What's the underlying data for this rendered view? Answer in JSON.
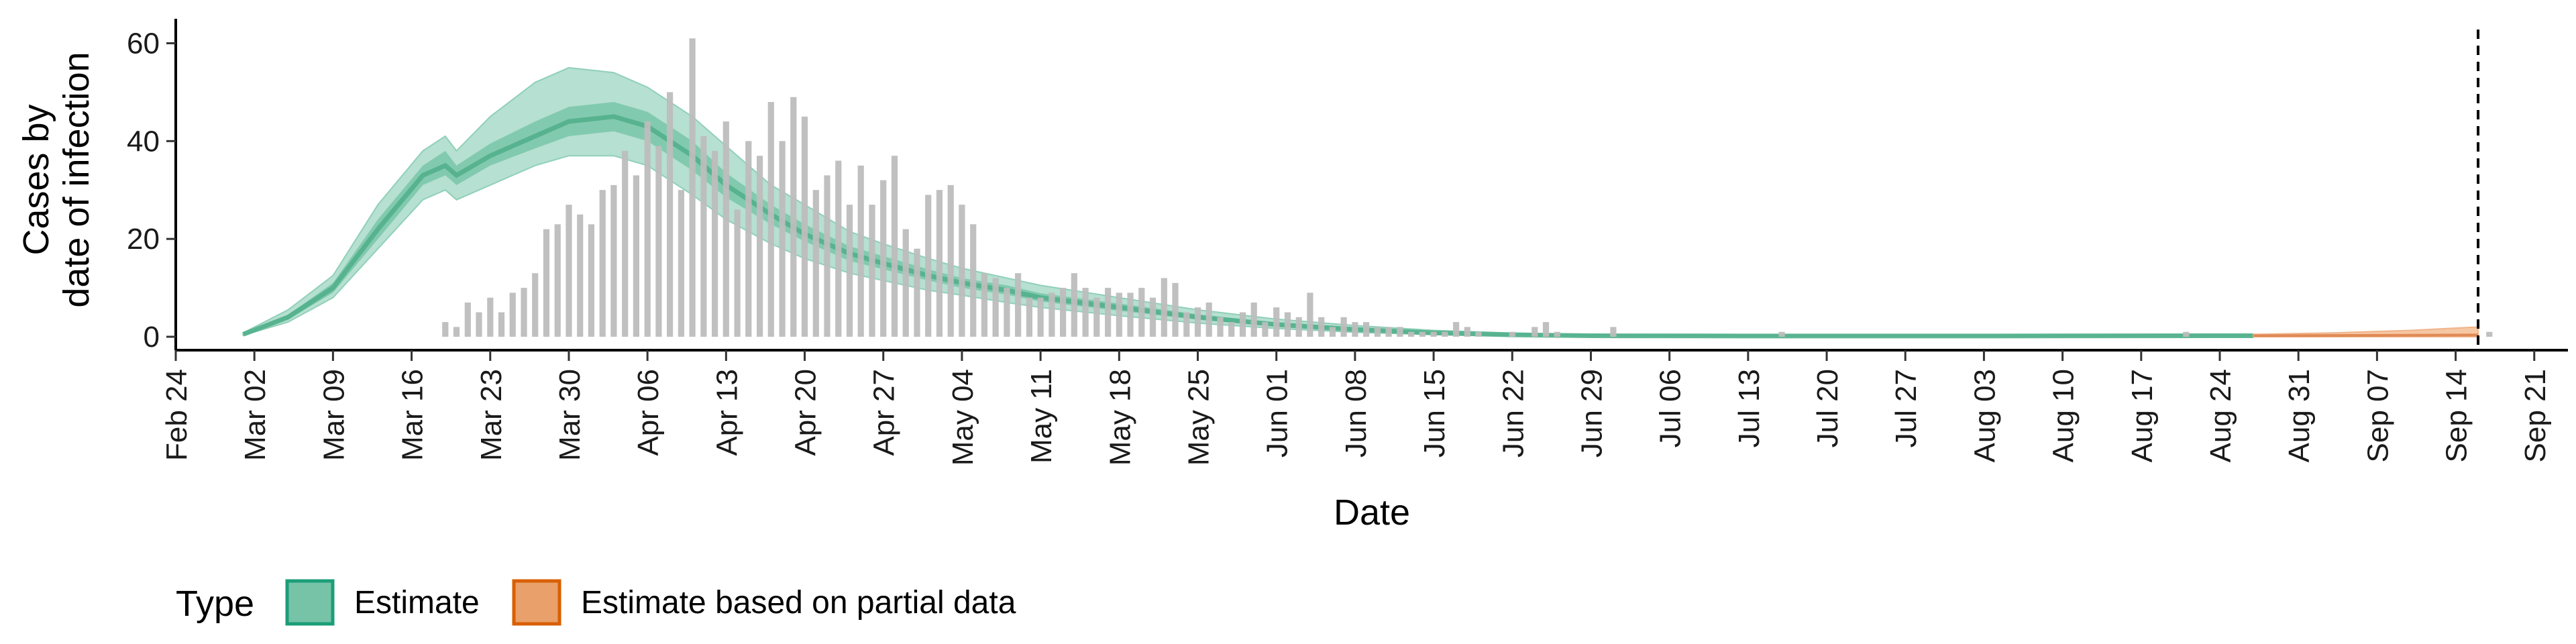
{
  "chart_data": {
    "type": "bar",
    "ylabel_line1": "Cases by",
    "ylabel_line2": "date of infection",
    "xlabel": "Date",
    "ylim": [
      0,
      65
    ],
    "yticks": [
      0,
      20,
      40,
      60
    ],
    "grid": false,
    "x_ticks": [
      "Feb 24",
      "Mar 02",
      "Mar 09",
      "Mar 16",
      "Mar 23",
      "Mar 30",
      "Apr 06",
      "Apr 13",
      "Apr 20",
      "Apr 27",
      "May 04",
      "May 11",
      "May 18",
      "May 25",
      "Jun 01",
      "Jun 08",
      "Jun 15",
      "Jun 22",
      "Jun 29",
      "Jul 06",
      "Jul 13",
      "Jul 20",
      "Jul 27",
      "Aug 03",
      "Aug 10",
      "Aug 17",
      "Aug 24",
      "Aug 31",
      "Sep 07",
      "Sep 14",
      "Sep 21"
    ],
    "x_start": "2020-02-24",
    "x_end": "2020-09-24",
    "reported_cases": {
      "start_date": "2020-03-19",
      "values": [
        3,
        2,
        7,
        5,
        8,
        5,
        9,
        10,
        13,
        22,
        23,
        27,
        25,
        23,
        30,
        31,
        38,
        33,
        44,
        39,
        50,
        30,
        61,
        41,
        38,
        44,
        26,
        40,
        37,
        48,
        40,
        49,
        45,
        30,
        33,
        36,
        27,
        35,
        27,
        32,
        37,
        22,
        18,
        29,
        30,
        31,
        27,
        23,
        13,
        12,
        10,
        13,
        8,
        8,
        9,
        10,
        13,
        10,
        8,
        10,
        9,
        9,
        10,
        8,
        12,
        11,
        5,
        6,
        7,
        4,
        3,
        5,
        7,
        3,
        6,
        5,
        4,
        9,
        4,
        2,
        4,
        3,
        3,
        2,
        2,
        2,
        1,
        1,
        1,
        1,
        3,
        2,
        1,
        0,
        0,
        1,
        0,
        2,
        3,
        1,
        0,
        0,
        0,
        0,
        2,
        0,
        0,
        0,
        0,
        0,
        0,
        0,
        0,
        0,
        0,
        0,
        0,
        0,
        0,
        1,
        0,
        0,
        0,
        0,
        0,
        0,
        0,
        0,
        0,
        0,
        0,
        0,
        0,
        0,
        0,
        0,
        0,
        0,
        0,
        0,
        0,
        0,
        0,
        0,
        0,
        0,
        0,
        0,
        0,
        0,
        0,
        0,
        0,
        0,
        0,
        1,
        0,
        0,
        0,
        0,
        0,
        0,
        0,
        0,
        0,
        0,
        0,
        0,
        0,
        0,
        0,
        0,
        0,
        0,
        0,
        0,
        0,
        0,
        0,
        0,
        0,
        0,
        1
      ]
    },
    "estimate_median": [
      {
        "date": "2020-03-01",
        "y": 0.5
      },
      {
        "date": "2020-03-05",
        "y": 4
      },
      {
        "date": "2020-03-09",
        "y": 10
      },
      {
        "date": "2020-03-13",
        "y": 22
      },
      {
        "date": "2020-03-17",
        "y": 33
      },
      {
        "date": "2020-03-19",
        "y": 35
      },
      {
        "date": "2020-03-20",
        "y": 33
      },
      {
        "date": "2020-03-23",
        "y": 37
      },
      {
        "date": "2020-03-27",
        "y": 41
      },
      {
        "date": "2020-03-30",
        "y": 44
      },
      {
        "date": "2020-04-03",
        "y": 45
      },
      {
        "date": "2020-04-06",
        "y": 43
      },
      {
        "date": "2020-04-10",
        "y": 37
      },
      {
        "date": "2020-04-13",
        "y": 31
      },
      {
        "date": "2020-04-17",
        "y": 25
      },
      {
        "date": "2020-04-20",
        "y": 21
      },
      {
        "date": "2020-04-24",
        "y": 17
      },
      {
        "date": "2020-04-27",
        "y": 15
      },
      {
        "date": "2020-05-01",
        "y": 12.5
      },
      {
        "date": "2020-05-04",
        "y": 11
      },
      {
        "date": "2020-05-08",
        "y": 9.5
      },
      {
        "date": "2020-05-11",
        "y": 8
      },
      {
        "date": "2020-05-18",
        "y": 6
      },
      {
        "date": "2020-05-25",
        "y": 4
      },
      {
        "date": "2020-06-01",
        "y": 2.5
      },
      {
        "date": "2020-06-08",
        "y": 1.5
      },
      {
        "date": "2020-06-15",
        "y": 0.8
      },
      {
        "date": "2020-06-22",
        "y": 0.4
      },
      {
        "date": "2020-06-29",
        "y": 0.2
      },
      {
        "date": "2020-07-13",
        "y": 0.15
      },
      {
        "date": "2020-08-03",
        "y": 0.15
      },
      {
        "date": "2020-08-27",
        "y": 0.2
      }
    ],
    "estimate_inner_band": [
      {
        "date": "2020-03-01",
        "lo": 0.4,
        "hi": 0.6
      },
      {
        "date": "2020-03-05",
        "lo": 3.5,
        "hi": 4.5
      },
      {
        "date": "2020-03-09",
        "lo": 9,
        "hi": 11
      },
      {
        "date": "2020-03-13",
        "lo": 20,
        "hi": 24
      },
      {
        "date": "2020-03-17",
        "lo": 31,
        "hi": 35
      },
      {
        "date": "2020-03-19",
        "lo": 33,
        "hi": 38
      },
      {
        "date": "2020-03-20",
        "lo": 31,
        "hi": 35
      },
      {
        "date": "2020-03-23",
        "lo": 35,
        "hi": 39.5
      },
      {
        "date": "2020-03-27",
        "lo": 38.5,
        "hi": 44
      },
      {
        "date": "2020-03-30",
        "lo": 41,
        "hi": 47
      },
      {
        "date": "2020-04-03",
        "lo": 42,
        "hi": 48
      },
      {
        "date": "2020-04-06",
        "lo": 40,
        "hi": 46
      },
      {
        "date": "2020-04-10",
        "lo": 34,
        "hi": 40
      },
      {
        "date": "2020-04-13",
        "lo": 28.5,
        "hi": 33.5
      },
      {
        "date": "2020-04-17",
        "lo": 23,
        "hi": 27
      },
      {
        "date": "2020-04-20",
        "lo": 19.5,
        "hi": 23
      },
      {
        "date": "2020-04-24",
        "lo": 15.5,
        "hi": 18.5
      },
      {
        "date": "2020-04-27",
        "lo": 13.8,
        "hi": 16.5
      },
      {
        "date": "2020-05-01",
        "lo": 11.5,
        "hi": 13.8
      },
      {
        "date": "2020-05-04",
        "lo": 10,
        "hi": 12
      },
      {
        "date": "2020-05-08",
        "lo": 8.6,
        "hi": 10.5
      },
      {
        "date": "2020-05-11",
        "lo": 7.2,
        "hi": 8.9
      },
      {
        "date": "2020-05-18",
        "lo": 5.3,
        "hi": 6.8
      },
      {
        "date": "2020-05-25",
        "lo": 3.5,
        "hi": 4.6
      },
      {
        "date": "2020-06-01",
        "lo": 2.1,
        "hi": 2.9
      },
      {
        "date": "2020-06-08",
        "lo": 1.2,
        "hi": 1.8
      },
      {
        "date": "2020-06-15",
        "lo": 0.6,
        "hi": 1
      },
      {
        "date": "2020-06-22",
        "lo": 0.3,
        "hi": 0.55
      },
      {
        "date": "2020-06-29",
        "lo": 0.15,
        "hi": 0.3
      },
      {
        "date": "2020-07-13",
        "lo": 0.1,
        "hi": 0.25
      },
      {
        "date": "2020-08-03",
        "lo": 0.1,
        "hi": 0.25
      },
      {
        "date": "2020-08-27",
        "lo": 0.12,
        "hi": 0.3
      }
    ],
    "estimate_outer_band": [
      {
        "date": "2020-03-01",
        "lo": 0.3,
        "hi": 0.8
      },
      {
        "date": "2020-03-05",
        "lo": 3,
        "hi": 5.5
      },
      {
        "date": "2020-03-09",
        "lo": 8,
        "hi": 12.5
      },
      {
        "date": "2020-03-13",
        "lo": 18,
        "hi": 27
      },
      {
        "date": "2020-03-17",
        "lo": 28,
        "hi": 38
      },
      {
        "date": "2020-03-19",
        "lo": 30,
        "hi": 41
      },
      {
        "date": "2020-03-20",
        "lo": 28,
        "hi": 38
      },
      {
        "date": "2020-03-23",
        "lo": 31,
        "hi": 45
      },
      {
        "date": "2020-03-27",
        "lo": 35,
        "hi": 52
      },
      {
        "date": "2020-03-30",
        "lo": 37,
        "hi": 55
      },
      {
        "date": "2020-04-03",
        "lo": 37,
        "hi": 54
      },
      {
        "date": "2020-04-06",
        "lo": 35,
        "hi": 51
      },
      {
        "date": "2020-04-10",
        "lo": 29,
        "hi": 45
      },
      {
        "date": "2020-04-13",
        "lo": 24,
        "hi": 39
      },
      {
        "date": "2020-04-17",
        "lo": 19,
        "hi": 31
      },
      {
        "date": "2020-04-20",
        "lo": 16,
        "hi": 27
      },
      {
        "date": "2020-04-24",
        "lo": 13,
        "hi": 21.5
      },
      {
        "date": "2020-04-27",
        "lo": 11.5,
        "hi": 19
      },
      {
        "date": "2020-05-01",
        "lo": 9.5,
        "hi": 16
      },
      {
        "date": "2020-05-04",
        "lo": 8.5,
        "hi": 14
      },
      {
        "date": "2020-05-08",
        "lo": 7,
        "hi": 12
      },
      {
        "date": "2020-05-11",
        "lo": 6,
        "hi": 10.5
      },
      {
        "date": "2020-05-18",
        "lo": 4.3,
        "hi": 8
      },
      {
        "date": "2020-05-25",
        "lo": 2.8,
        "hi": 5.5
      },
      {
        "date": "2020-06-01",
        "lo": 1.7,
        "hi": 3.6
      },
      {
        "date": "2020-06-08",
        "lo": 0.9,
        "hi": 2.3
      },
      {
        "date": "2020-06-15",
        "lo": 0.45,
        "hi": 1.3
      },
      {
        "date": "2020-06-22",
        "lo": 0.2,
        "hi": 0.75
      },
      {
        "date": "2020-06-29",
        "lo": 0.1,
        "hi": 0.45
      },
      {
        "date": "2020-07-13",
        "lo": 0.05,
        "hi": 0.4
      },
      {
        "date": "2020-08-03",
        "lo": 0.05,
        "hi": 0.4
      },
      {
        "date": "2020-08-27",
        "lo": 0.05,
        "hi": 0.5
      }
    ],
    "partial_estimate_band": [
      {
        "date": "2020-08-27",
        "lo": 0,
        "hi": 0.5
      },
      {
        "date": "2020-09-03",
        "lo": 0,
        "hi": 0.8
      },
      {
        "date": "2020-09-10",
        "lo": 0,
        "hi": 1.3
      },
      {
        "date": "2020-09-16",
        "lo": 0,
        "hi": 2.0
      }
    ],
    "partial_estimate_median": [
      {
        "date": "2020-08-27",
        "y": 0.2
      },
      {
        "date": "2020-09-16",
        "y": 0.35
      }
    ],
    "vline_date": "2020-09-16",
    "legend": {
      "title": "Type",
      "entries": [
        {
          "label": "Estimate",
          "fill": "#76c3a8",
          "stroke": "#1b9e77"
        },
        {
          "label": "Estimate based on partial data",
          "fill": "#e9a06a",
          "stroke": "#d95f02"
        }
      ],
      "placement": "bottom-left"
    },
    "colors": {
      "bars": "#bdbdbd",
      "estimate_outer": "#b6e0d1",
      "estimate_inner": "#79c6a9",
      "estimate_median": "#52b08c",
      "partial_fill": "#f6c7a3",
      "vline": "#000000"
    }
  }
}
